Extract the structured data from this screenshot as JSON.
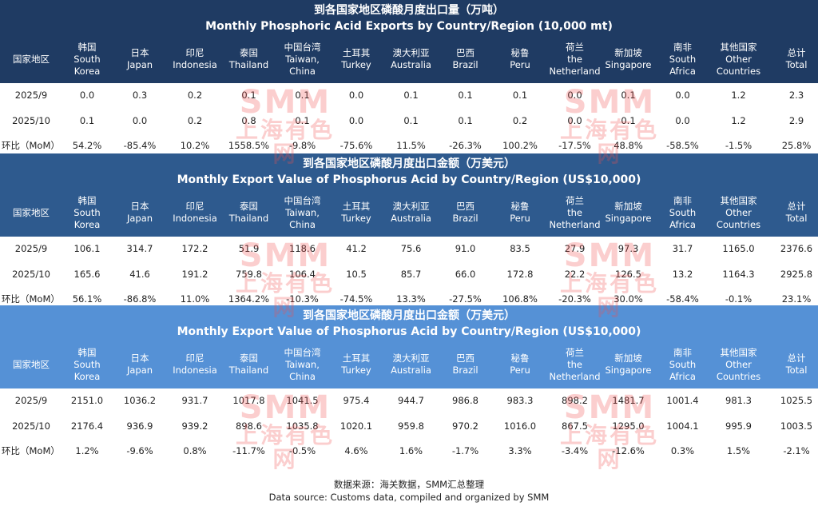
{
  "colors": {
    "section1": "#1f3b63",
    "section2": "#2e5a8e",
    "section3": "#5591d6",
    "watermark": "#f05050"
  },
  "columns": [
    {
      "cn": "韩国",
      "en": "South Korea"
    },
    {
      "cn": "日本",
      "en": "Japan"
    },
    {
      "cn": "印尼",
      "en": "Indonesia"
    },
    {
      "cn": "泰国",
      "en": "Thailand"
    },
    {
      "cn": "中国台湾",
      "en": "Taiwan, China"
    },
    {
      "cn": "土耳其",
      "en": "Turkey"
    },
    {
      "cn": "澳大利亚",
      "en": "Australia"
    },
    {
      "cn": "巴西",
      "en": "Brazil"
    },
    {
      "cn": "秘鲁",
      "en": "Peru"
    },
    {
      "cn": "荷兰",
      "en": "the Netherland"
    },
    {
      "cn": "新加坡",
      "en": "Singapore"
    },
    {
      "cn": "南非",
      "en": "South Africa"
    },
    {
      "cn": "其他国家",
      "en": "Other Countries"
    },
    {
      "cn": "总计",
      "en": "Total"
    }
  ],
  "row_header_label": "国家地区",
  "sections": [
    {
      "title_cn": "到各国家地区磷酸月度出口量（万吨）",
      "title_en": "Monthly Phosphoric Acid Exports by Country/Region (10,000 mt)",
      "rows": [
        {
          "label": "2025/9",
          "values": [
            "0.0",
            "0.3",
            "0.2",
            "0.1",
            "0.1",
            "0.0",
            "0.1",
            "0.1",
            "0.1",
            "0.0",
            "0.1",
            "0.0",
            "1.2",
            "2.3"
          ]
        },
        {
          "label": "2025/10",
          "values": [
            "0.1",
            "0.0",
            "0.2",
            "0.8",
            "0.1",
            "0.0",
            "0.1",
            "0.1",
            "0.2",
            "0.0",
            "0.1",
            "0.0",
            "1.2",
            "2.9"
          ]
        },
        {
          "label": "环比（MoM）",
          "values": [
            "54.2%",
            "-85.4%",
            "10.2%",
            "1558.5%",
            "-9.8%",
            "-75.6%",
            "11.5%",
            "-26.3%",
            "100.2%",
            "-17.5%",
            "48.8%",
            "-58.5%",
            "-1.5%",
            "25.8%"
          ]
        }
      ]
    },
    {
      "title_cn": "到各国家地区磷酸月度出口金额（万美元）",
      "title_en": "Monthly Export Value of Phosphorus Acid by Country/Region (US$10,000)",
      "rows": [
        {
          "label": "2025/9",
          "values": [
            "106.1",
            "314.7",
            "172.2",
            "51.9",
            "118.6",
            "41.2",
            "75.6",
            "91.0",
            "83.5",
            "27.9",
            "97.3",
            "31.7",
            "1165.0",
            "2376.6"
          ]
        },
        {
          "label": "2025/10",
          "values": [
            "165.6",
            "41.6",
            "191.2",
            "759.8",
            "106.4",
            "10.5",
            "85.7",
            "66.0",
            "172.8",
            "22.2",
            "126.5",
            "13.2",
            "1164.3",
            "2925.8"
          ]
        },
        {
          "label": "环比（MoM）",
          "values": [
            "56.1%",
            "-86.8%",
            "11.0%",
            "1364.2%",
            "-10.3%",
            "-74.5%",
            "13.3%",
            "-27.5%",
            "106.8%",
            "-20.3%",
            "30.0%",
            "-58.4%",
            "-0.1%",
            "23.1%"
          ]
        }
      ]
    },
    {
      "title_cn": "到各国家地区磷酸月度出口金额（万美元）",
      "title_en": "Monthly Export Value of Phosphorus Acid by Country/Region (US$10,000)",
      "rows": [
        {
          "label": "2025/9",
          "values": [
            "2151.0",
            "1036.2",
            "931.7",
            "1017.8",
            "1041.5",
            "975.4",
            "944.7",
            "986.8",
            "983.3",
            "898.2",
            "1481.7",
            "1001.4",
            "981.3",
            "1025.5"
          ]
        },
        {
          "label": "2025/10",
          "values": [
            "2176.4",
            "936.9",
            "939.2",
            "898.6",
            "1035.8",
            "1020.1",
            "959.8",
            "970.2",
            "1016.0",
            "867.5",
            "1295.0",
            "1004.1",
            "995.9",
            "1003.5"
          ]
        },
        {
          "label": "环比（MoM）",
          "values": [
            "1.2%",
            "-9.6%",
            "0.8%",
            "-11.7%",
            "-0.5%",
            "4.6%",
            "1.6%",
            "-1.7%",
            "3.3%",
            "-3.4%",
            "-12.6%",
            "0.3%",
            "1.5%",
            "-2.1%"
          ]
        }
      ]
    }
  ],
  "watermark": {
    "logo": "SMM",
    "cn": "上海有色网"
  },
  "footer": {
    "source_cn": "数据来源：海关数据，SMM汇总整理",
    "source_en": "Data source: Customs data, compiled and organized by SMM"
  },
  "chart_data": {
    "type": "table",
    "columns": [
      "South Korea",
      "Japan",
      "Indonesia",
      "Thailand",
      "Taiwan, China",
      "Turkey",
      "Australia",
      "Brazil",
      "Peru",
      "the Netherland",
      "Singapore",
      "South Africa",
      "Other Countries",
      "Total"
    ],
    "tables": [
      {
        "title": "Monthly Phosphoric Acid Exports by Country/Region (10,000 mt)",
        "rows": {
          "2025/9": [
            0.0,
            0.3,
            0.2,
            0.1,
            0.1,
            0.0,
            0.1,
            0.1,
            0.1,
            0.0,
            0.1,
            0.0,
            1.2,
            2.3
          ],
          "2025/10": [
            0.1,
            0.0,
            0.2,
            0.8,
            0.1,
            0.0,
            0.1,
            0.1,
            0.2,
            0.0,
            0.1,
            0.0,
            1.2,
            2.9
          ],
          "MoM": [
            "54.2%",
            "-85.4%",
            "10.2%",
            "1558.5%",
            "-9.8%",
            "-75.6%",
            "11.5%",
            "-26.3%",
            "100.2%",
            "-17.5%",
            "48.8%",
            "-58.5%",
            "-1.5%",
            "25.8%"
          ]
        }
      },
      {
        "title": "Monthly Export Value of Phosphorus Acid by Country/Region (US$10,000)",
        "rows": {
          "2025/9": [
            106.1,
            314.7,
            172.2,
            51.9,
            118.6,
            41.2,
            75.6,
            91.0,
            83.5,
            27.9,
            97.3,
            31.7,
            1165.0,
            2376.6
          ],
          "2025/10": [
            165.6,
            41.6,
            191.2,
            759.8,
            106.4,
            10.5,
            85.7,
            66.0,
            172.8,
            22.2,
            126.5,
            13.2,
            1164.3,
            2925.8
          ],
          "MoM": [
            "56.1%",
            "-86.8%",
            "11.0%",
            "1364.2%",
            "-10.3%",
            "-74.5%",
            "13.3%",
            "-27.5%",
            "106.8%",
            "-20.3%",
            "30.0%",
            "-58.4%",
            "-0.1%",
            "23.1%"
          ]
        }
      },
      {
        "title": "Monthly Export Value of Phosphorus Acid by Country/Region (US$10,000)",
        "rows": {
          "2025/9": [
            2151.0,
            1036.2,
            931.7,
            1017.8,
            1041.5,
            975.4,
            944.7,
            986.8,
            983.3,
            898.2,
            1481.7,
            1001.4,
            981.3,
            1025.5
          ],
          "2025/10": [
            2176.4,
            936.9,
            939.2,
            898.6,
            1035.8,
            1020.1,
            959.8,
            970.2,
            1016.0,
            867.5,
            1295.0,
            1004.1,
            995.9,
            1003.5
          ],
          "MoM": [
            "1.2%",
            "-9.6%",
            "0.8%",
            "-11.7%",
            "-0.5%",
            "4.6%",
            "1.6%",
            "-1.7%",
            "3.3%",
            "-3.4%",
            "-12.6%",
            "0.3%",
            "1.5%",
            "-2.1%"
          ]
        }
      }
    ]
  }
}
